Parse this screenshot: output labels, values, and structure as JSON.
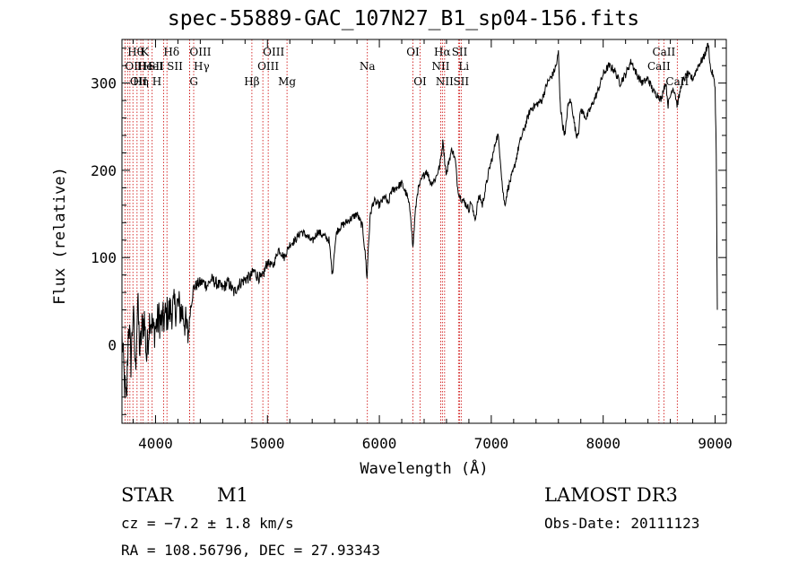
{
  "chart_data": {
    "type": "line",
    "title": "spec-55889-GAC_107N27_B1_sp04-156.fits",
    "xlabel": "Wavelength (Å)",
    "ylabel": "Flux (relative)",
    "xlim": [
      3700,
      9100
    ],
    "ylim": [
      -90,
      350
    ],
    "xticks": [
      {
        "v": 4000,
        "label": "4000"
      },
      {
        "v": 5000,
        "label": "5000"
      },
      {
        "v": 6000,
        "label": "6000"
      },
      {
        "v": 7000,
        "label": "7000"
      },
      {
        "v": 8000,
        "label": "8000"
      },
      {
        "v": 9000,
        "label": "9000"
      }
    ],
    "yticks": [
      {
        "v": 0,
        "label": "0"
      },
      {
        "v": 100,
        "label": "100"
      },
      {
        "v": 200,
        "label": "200"
      },
      {
        "v": 300,
        "label": "300"
      }
    ],
    "series": [
      {
        "name": "flux",
        "x": [
          3700,
          3720,
          3740,
          3760,
          3780,
          3800,
          3820,
          3840,
          3860,
          3880,
          3900,
          3920,
          3950,
          3980,
          4000,
          4030,
          4060,
          4100,
          4150,
          4200,
          4250,
          4290,
          4300,
          4310,
          4340,
          4380,
          4420,
          4460,
          4500,
          4550,
          4600,
          4650,
          4700,
          4750,
          4800,
          4850,
          4880,
          4900,
          4950,
          5000,
          5050,
          5100,
          5150,
          5200,
          5250,
          5300,
          5350,
          5400,
          5450,
          5500,
          5550,
          5580,
          5600,
          5620,
          5650,
          5700,
          5750,
          5800,
          5850,
          5880,
          5890,
          5900,
          5920,
          5950,
          6000,
          6050,
          6080,
          6100,
          6150,
          6200,
          6250,
          6280,
          6300,
          6320,
          6340,
          6380,
          6420,
          6460,
          6500,
          6540,
          6560,
          6570,
          6580,
          6600,
          6620,
          6650,
          6680,
          6700,
          6720,
          6750,
          6780,
          6800,
          6820,
          6840,
          6860,
          6880,
          6900,
          6920,
          6950,
          6980,
          7000,
          7020,
          7040,
          7060,
          7080,
          7100,
          7120,
          7150,
          7200,
          7250,
          7300,
          7350,
          7400,
          7450,
          7500,
          7550,
          7580,
          7600,
          7610,
          7620,
          7640,
          7660,
          7680,
          7700,
          7720,
          7740,
          7760,
          7780,
          7800,
          7850,
          7900,
          7950,
          8000,
          8050,
          8100,
          8150,
          8200,
          8250,
          8300,
          8350,
          8400,
          8450,
          8500,
          8520,
          8540,
          8560,
          8580,
          8600,
          8620,
          8640,
          8660,
          8680,
          8700,
          8750,
          8800,
          8850,
          8900,
          8940,
          8960,
          8980,
          9000,
          9010,
          9020
        ],
        "y": [
          10,
          -40,
          -70,
          30,
          -20,
          40,
          -30,
          50,
          -10,
          20,
          30,
          -15,
          35,
          15,
          20,
          30,
          25,
          35,
          40,
          45,
          35,
          10,
          20,
          40,
          65,
          70,
          72,
          68,
          75,
          70,
          65,
          72,
          60,
          70,
          75,
          78,
          85,
          80,
          75,
          95,
          90,
          110,
          100,
          115,
          120,
          130,
          125,
          118,
          130,
          125,
          120,
          80,
          110,
          130,
          135,
          140,
          145,
          150,
          135,
          95,
          75,
          110,
          150,
          165,
          160,
          170,
          160,
          175,
          180,
          185,
          170,
          150,
          110,
          150,
          175,
          190,
          200,
          185,
          190,
          205,
          225,
          235,
          215,
          195,
          210,
          225,
          210,
          180,
          170,
          165,
          160,
          155,
          165,
          150,
          145,
          165,
          170,
          160,
          180,
          200,
          210,
          220,
          235,
          240,
          215,
          180,
          160,
          180,
          200,
          230,
          250,
          270,
          275,
          280,
          300,
          310,
          320,
          335,
          295,
          270,
          250,
          240,
          270,
          280,
          275,
          255,
          240,
          245,
          270,
          260,
          275,
          290,
          310,
          320,
          315,
          300,
          310,
          325,
          310,
          300,
          305,
          290,
          285,
          280,
          295,
          300,
          275,
          285,
          295,
          290,
          275,
          285,
          300,
          310,
          305,
          320,
          330,
          345,
          315,
          310,
          295,
          220,
          40
        ]
      }
    ],
    "lines": [
      {
        "w": 3727,
        "label": "OII",
        "row": 2,
        "anchor": "start"
      },
      {
        "w": 3750,
        "label": "Hθ",
        "row": 1,
        "anchor": "start"
      },
      {
        "w": 3771,
        "label": "OII",
        "row": 3,
        "anchor": "start"
      },
      {
        "w": 3798,
        "label": "Hη",
        "row": 3,
        "anchor": "start"
      },
      {
        "w": 3835,
        "label": "He",
        "row": 2,
        "anchor": "start"
      },
      {
        "w": 3869,
        "label": "K",
        "row": 1,
        "anchor": "start"
      },
      {
        "w": 3889,
        "label": "HeI",
        "row": 2,
        "anchor": "start"
      },
      {
        "w": 3934,
        "label": "SII",
        "row": 2,
        "anchor": "start"
      },
      {
        "w": 3970,
        "label": "H",
        "row": 3,
        "anchor": "start"
      },
      {
        "w": 4072,
        "label": "Hδ",
        "row": 1,
        "anchor": "start"
      },
      {
        "w": 4102,
        "label": "SII",
        "row": 2,
        "anchor": "start"
      },
      {
        "w": 4304,
        "label": "OIII",
        "row": 1,
        "anchor": "start"
      },
      {
        "w": 4304,
        "label": "G",
        "row": 3,
        "anchor": "start"
      },
      {
        "w": 4341,
        "label": "Hγ",
        "row": 2,
        "anchor": "start"
      },
      {
        "w": 4861,
        "label": "Hβ",
        "row": 3,
        "anchor": "middle"
      },
      {
        "w": 4959,
        "label": "OIII",
        "row": 1,
        "anchor": "start"
      },
      {
        "w": 5007,
        "label": "OIII",
        "row": 2,
        "anchor": "middle"
      },
      {
        "w": 5175,
        "label": "Mg",
        "row": 3,
        "anchor": "middle"
      },
      {
        "w": 5893,
        "label": "Na",
        "row": 2,
        "anchor": "middle"
      },
      {
        "w": 6300,
        "label": "OI",
        "row": 1,
        "anchor": "middle"
      },
      {
        "w": 6364,
        "label": "OI",
        "row": 3,
        "anchor": "middle"
      },
      {
        "w": 6548,
        "label": "NII",
        "row": 2,
        "anchor": "middle"
      },
      {
        "w": 6563,
        "label": "Hα",
        "row": 1,
        "anchor": "middle"
      },
      {
        "w": 6583,
        "label": "NII",
        "row": 3,
        "anchor": "middle"
      },
      {
        "w": 6707,
        "label": "Li",
        "row": 2,
        "anchor": "start"
      },
      {
        "w": 6717,
        "label": "SII",
        "row": 1,
        "anchor": "middle"
      },
      {
        "w": 6731,
        "label": "SII",
        "row": 3,
        "anchor": "middle"
      },
      {
        "w": 8498,
        "label": "CaII",
        "row": 2,
        "anchor": "middle"
      },
      {
        "w": 8542,
        "label": "CaII",
        "row": 1,
        "anchor": "middle"
      },
      {
        "w": 8662,
        "label": "CaII",
        "row": 3,
        "anchor": "middle"
      }
    ]
  },
  "info": {
    "object_class": "STAR",
    "subclass": "M1",
    "cz": "cz = −7.2 ± 1.8 km/s",
    "coords": "RA = 108.56796, DEC =  27.93343",
    "survey": "LAMOST DR3",
    "obs_date": "Obs-Date: 20111123"
  },
  "colors": {
    "line_marker": "#cc0000",
    "spectrum": "#000000",
    "axes": "#000000"
  }
}
